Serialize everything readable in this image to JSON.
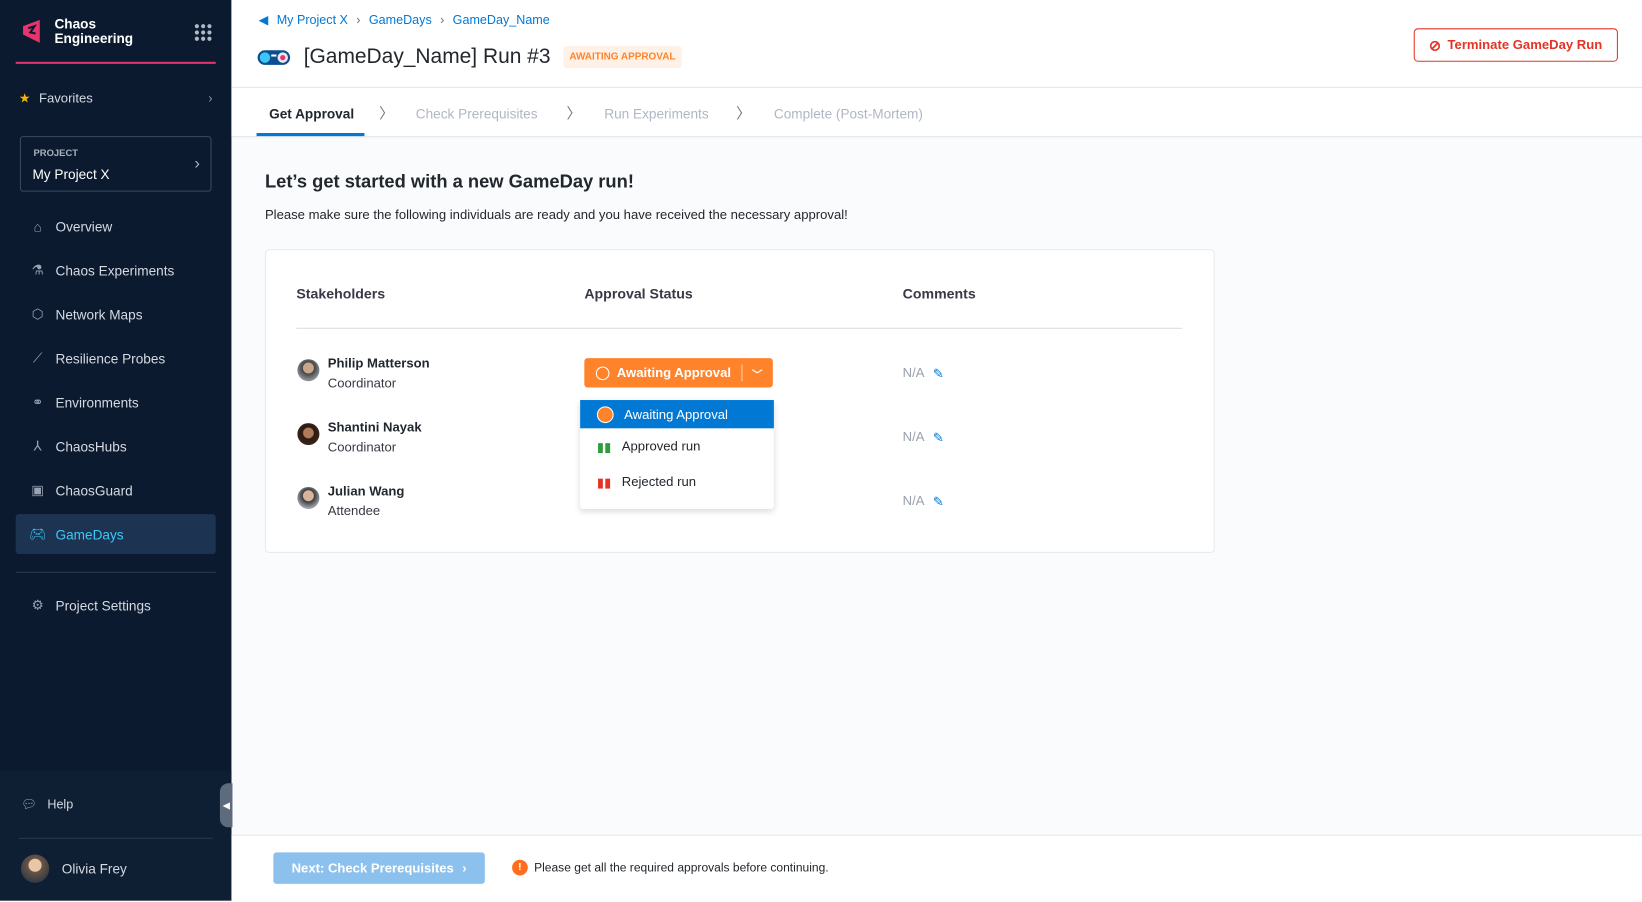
{
  "sidebar": {
    "brand": "Chaos Engineering",
    "favorites": "Favorites",
    "project": {
      "label": "PROJECT",
      "name": "My Project X"
    },
    "items": [
      {
        "label": "Overview",
        "icon": "home-icon"
      },
      {
        "label": "Chaos Experiments",
        "icon": "flask-icon"
      },
      {
        "label": "Network Maps",
        "icon": "hexagon-icon"
      },
      {
        "label": "Resilience Probes",
        "icon": "probe-icon"
      },
      {
        "label": "Environments",
        "icon": "environments-icon"
      },
      {
        "label": "ChaosHubs",
        "icon": "hub-icon"
      },
      {
        "label": "ChaosGuard",
        "icon": "lock-icon"
      },
      {
        "label": "GameDays",
        "icon": "gamepad-icon",
        "active": true
      }
    ],
    "settings": "Project Settings",
    "help": "Help",
    "user": "Olivia Frey"
  },
  "header": {
    "breadcrumbs": [
      "My Project X",
      "GameDays",
      "GameDay_Name"
    ],
    "title": "[GameDay_Name] Run #3",
    "badge": "AWAITING APPROVAL",
    "terminate": "Terminate GameDay Run"
  },
  "steps": [
    "Get Approval",
    "Check Prerequisites",
    "Run Experiments",
    "Complete (Post-Mortem)"
  ],
  "content": {
    "heading": "Let’s get started with a new GameDay run!",
    "subheading": "Please make sure the following individuals are ready and you have received the necessary approval!",
    "columns": [
      "Stakeholders",
      "Approval Status",
      "Comments"
    ],
    "rows": [
      {
        "name": "Philip Matterson",
        "role": "Coordinator",
        "status": "Awaiting Approval",
        "comment": "N/A"
      },
      {
        "name": "Shantini Nayak",
        "role": "Coordinator",
        "comment": "N/A"
      },
      {
        "name": "Julian Wang",
        "role": "Attendee",
        "comment": "N/A"
      }
    ],
    "dropdown": [
      "Awaiting Approval",
      "Approved run",
      "Rejected run"
    ]
  },
  "footer": {
    "next": "Next: Check Prerequisites",
    "warning": "Please get all the required approvals before continuing."
  },
  "colors": {
    "accent": "#0278d5",
    "awaiting": "#ff832b",
    "approved": "#2e9e3a",
    "rejected": "#e43326",
    "sidebar": "#0b1a2e"
  }
}
